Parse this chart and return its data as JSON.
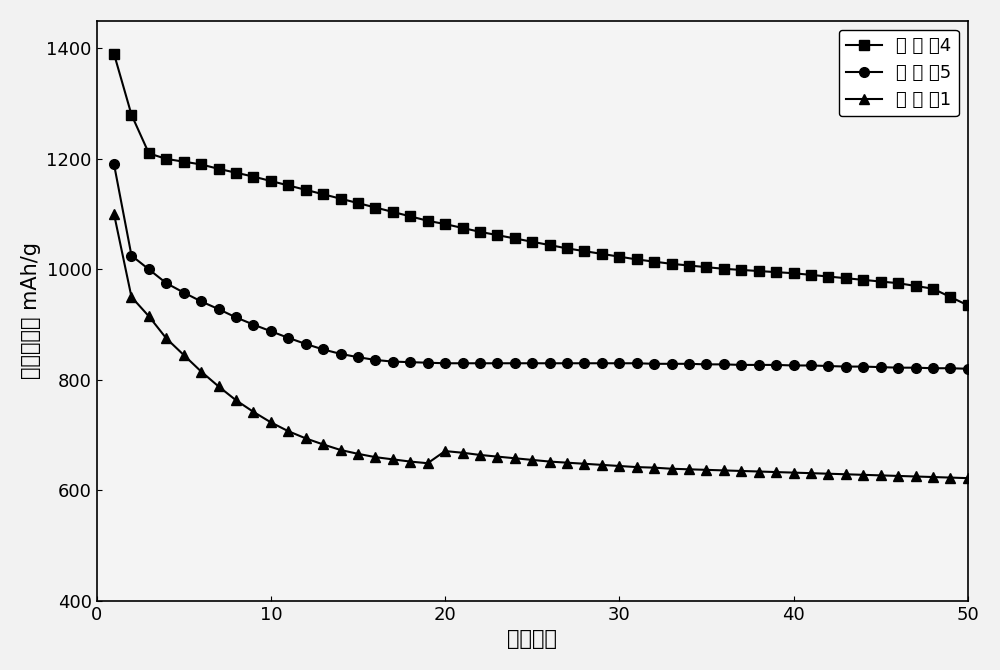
{
  "title": "",
  "xlabel": "循环次数",
  "ylabel": "放电比容量 mAh/g",
  "xlim": [
    0,
    50
  ],
  "ylim": [
    400,
    1450
  ],
  "yticks": [
    400,
    600,
    800,
    1000,
    1200,
    1400
  ],
  "xticks": [
    0,
    10,
    20,
    30,
    40,
    50
  ],
  "series": [
    {
      "label": "实 施 例4",
      "marker": "s",
      "color": "#000000",
      "x": [
        1,
        2,
        3,
        4,
        5,
        6,
        7,
        8,
        9,
        10,
        11,
        12,
        13,
        14,
        15,
        16,
        17,
        18,
        19,
        20,
        21,
        22,
        23,
        24,
        25,
        26,
        27,
        28,
        29,
        30,
        31,
        32,
        33,
        34,
        35,
        36,
        37,
        38,
        39,
        40,
        41,
        42,
        43,
        44,
        45,
        46,
        47,
        48,
        49,
        50
      ],
      "y": [
        1390,
        1280,
        1210,
        1200,
        1195,
        1190,
        1182,
        1175,
        1168,
        1160,
        1152,
        1144,
        1136,
        1128,
        1120,
        1112,
        1104,
        1096,
        1088,
        1082,
        1075,
        1068,
        1062,
        1056,
        1050,
        1044,
        1038,
        1033,
        1028,
        1023,
        1018,
        1014,
        1010,
        1007,
        1004,
        1001,
        999,
        997,
        995,
        993,
        990,
        987,
        984,
        981,
        978,
        975,
        970,
        965,
        950,
        935
      ]
    },
    {
      "label": "实 施 例5",
      "marker": "o",
      "color": "#000000",
      "x": [
        1,
        2,
        3,
        4,
        5,
        6,
        7,
        8,
        9,
        10,
        11,
        12,
        13,
        14,
        15,
        16,
        17,
        18,
        19,
        20,
        21,
        22,
        23,
        24,
        25,
        26,
        27,
        28,
        29,
        30,
        31,
        32,
        33,
        34,
        35,
        36,
        37,
        38,
        39,
        40,
        41,
        42,
        43,
        44,
        45,
        46,
        47,
        48,
        49,
        50
      ],
      "y": [
        1190,
        1025,
        1000,
        975,
        958,
        942,
        928,
        913,
        900,
        888,
        876,
        865,
        855,
        847,
        841,
        836,
        833,
        832,
        831,
        830,
        830,
        830,
        830,
        830,
        830,
        830,
        830,
        830,
        830,
        830,
        830,
        829,
        829,
        829,
        828,
        828,
        827,
        827,
        827,
        826,
        826,
        825,
        824,
        824,
        823,
        822,
        822,
        821,
        821,
        820
      ]
    },
    {
      "label": "对 比 例1",
      "marker": "^",
      "color": "#000000",
      "x": [
        1,
        2,
        3,
        4,
        5,
        6,
        7,
        8,
        9,
        10,
        11,
        12,
        13,
        14,
        15,
        16,
        17,
        18,
        19,
        20,
        21,
        22,
        23,
        24,
        25,
        26,
        27,
        28,
        29,
        30,
        31,
        32,
        33,
        34,
        35,
        36,
        37,
        38,
        39,
        40,
        41,
        42,
        43,
        44,
        45,
        46,
        47,
        48,
        49,
        50
      ],
      "y": [
        1100,
        950,
        915,
        875,
        845,
        815,
        788,
        763,
        742,
        723,
        707,
        694,
        683,
        673,
        666,
        660,
        656,
        652,
        649,
        671,
        668,
        664,
        661,
        658,
        655,
        652,
        650,
        648,
        646,
        644,
        642,
        641,
        639,
        638,
        637,
        636,
        635,
        634,
        633,
        632,
        631,
        630,
        629,
        628,
        627,
        626,
        625,
        624,
        623,
        622
      ]
    }
  ],
  "markersize": 7,
  "linewidth": 1.5,
  "font_size_axis_label": 15,
  "font_size_tick": 13,
  "font_size_legend": 13
}
